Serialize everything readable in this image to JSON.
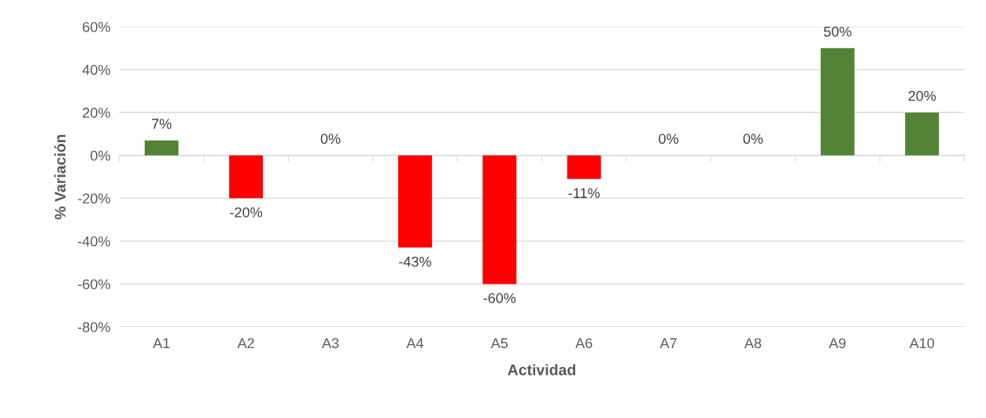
{
  "chart_data": {
    "type": "bar",
    "xlabel": "Actividad",
    "ylabel": "% Variación",
    "categories": [
      "A1",
      "A2",
      "A3",
      "A4",
      "A5",
      "A6",
      "A7",
      "A8",
      "A9",
      "A10"
    ],
    "values": [
      7,
      -20,
      0,
      -43,
      -60,
      -11,
      0,
      0,
      50,
      20
    ],
    "colors": [
      "#548235",
      "#ff0000",
      "#548235",
      "#ff0000",
      "#ff0000",
      "#ff0000",
      "#548235",
      "#548235",
      "#548235",
      "#548235"
    ],
    "value_labels": [
      "7%",
      "-20%",
      "0%",
      "-43%",
      "-60%",
      "-11%",
      "0%",
      "0%",
      "50%",
      "20%"
    ],
    "ylim": [
      -80,
      60
    ],
    "yticks": [
      {
        "value": -80,
        "label": "-80%"
      },
      {
        "value": -60,
        "label": "-60%"
      },
      {
        "value": -40,
        "label": "-40%"
      },
      {
        "value": -20,
        "label": "-20%"
      },
      {
        "value": 0,
        "label": "0%"
      },
      {
        "value": 20,
        "label": "20%"
      },
      {
        "value": 40,
        "label": "40%"
      },
      {
        "value": 60,
        "label": "60%"
      }
    ],
    "grid": "y",
    "legend": false
  }
}
